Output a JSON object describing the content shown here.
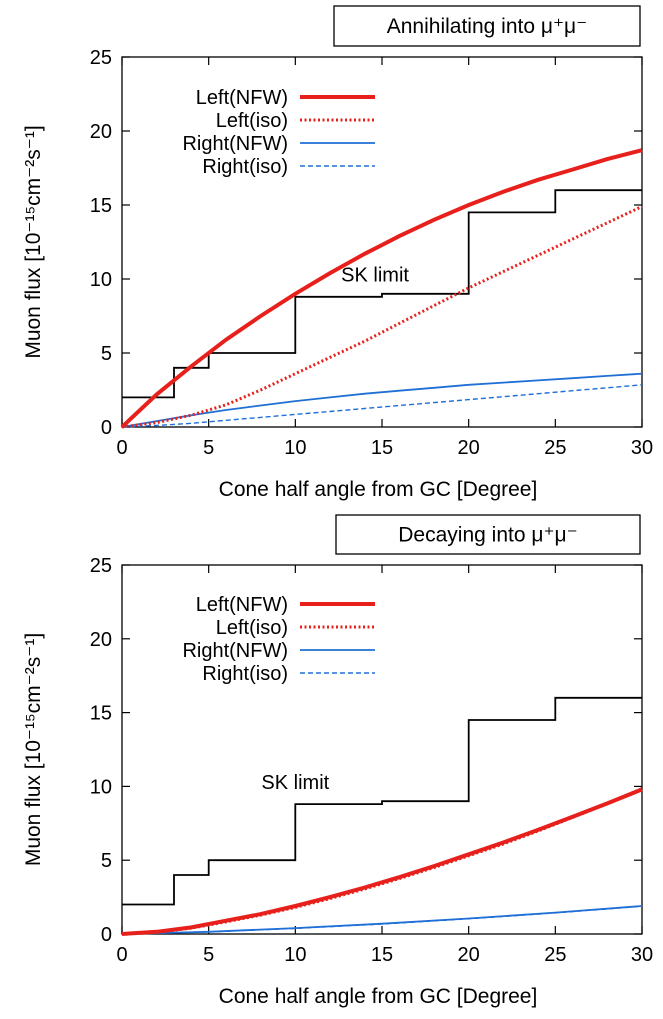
{
  "chart_data": [
    {
      "type": "line",
      "title": "Annihilating into μ⁺μ⁻",
      "xlabel": "Cone half angle from GC [Degree]",
      "ylabel": "Muon flux [10⁻¹⁵cm⁻²s⁻¹]",
      "xlim": [
        0,
        30
      ],
      "ylim": [
        0,
        25
      ],
      "xticks": [
        0,
        5,
        10,
        15,
        20,
        25,
        30
      ],
      "yticks": [
        0,
        5,
        10,
        15,
        20,
        25
      ],
      "grid": false,
      "legend_position": "top-left",
      "series": [
        {
          "name": "Left(NFW)",
          "color": "#e8201c",
          "style": "thick-solid",
          "x": [
            0,
            2,
            4,
            6,
            8,
            10,
            12,
            14,
            16,
            18,
            20,
            22,
            24,
            26,
            28,
            30
          ],
          "y": [
            0,
            2.2,
            4.1,
            5.9,
            7.5,
            9.0,
            10.4,
            11.7,
            12.9,
            14.0,
            15.0,
            15.9,
            16.7,
            17.4,
            18.1,
            18.7
          ]
        },
        {
          "name": "Left(iso)",
          "color": "#e8201c",
          "style": "dotted",
          "x": [
            0,
            2,
            4,
            6,
            8,
            10,
            12,
            14,
            16,
            18,
            20,
            22,
            24,
            26,
            28,
            30
          ],
          "y": [
            0,
            0.3,
            0.8,
            1.5,
            2.5,
            3.6,
            4.7,
            5.8,
            7.0,
            8.2,
            9.4,
            10.5,
            11.6,
            12.7,
            13.8,
            14.9
          ]
        },
        {
          "name": "Right(NFW)",
          "color": "#1f6fd6",
          "style": "solid",
          "x": [
            0,
            2,
            4,
            6,
            8,
            10,
            12,
            14,
            16,
            18,
            20,
            22,
            24,
            26,
            28,
            30
          ],
          "y": [
            0,
            0.4,
            0.8,
            1.15,
            1.45,
            1.75,
            2.0,
            2.25,
            2.45,
            2.65,
            2.85,
            3.0,
            3.15,
            3.3,
            3.45,
            3.6
          ]
        },
        {
          "name": "Right(iso)",
          "color": "#1f6fd6",
          "style": "dashed",
          "x": [
            0,
            2,
            4,
            6,
            8,
            10,
            12,
            14,
            16,
            18,
            20,
            22,
            24,
            26,
            28,
            30
          ],
          "y": [
            0,
            0.1,
            0.25,
            0.45,
            0.65,
            0.85,
            1.05,
            1.25,
            1.45,
            1.65,
            1.85,
            2.05,
            2.25,
            2.45,
            2.65,
            2.85
          ]
        }
      ],
      "limit": {
        "label": "SK limit",
        "label_at": [
          14.6,
          10.3
        ],
        "color": "#000000",
        "steps": [
          [
            0,
            2
          ],
          [
            3,
            2
          ],
          [
            3,
            4
          ],
          [
            5,
            4
          ],
          [
            5,
            5
          ],
          [
            10,
            5
          ],
          [
            10,
            8.8
          ],
          [
            15,
            8.8
          ],
          [
            15,
            9
          ],
          [
            20,
            9
          ],
          [
            20,
            14.5
          ],
          [
            25,
            14.5
          ],
          [
            25,
            16
          ],
          [
            30,
            16
          ]
        ]
      }
    },
    {
      "type": "line",
      "title": "Decaying into μ⁺μ⁻",
      "xlabel": "Cone half angle from GC [Degree]",
      "ylabel": "Muon flux [10⁻¹⁵cm⁻²s⁻¹]",
      "xlim": [
        0,
        30
      ],
      "ylim": [
        0,
        25
      ],
      "xticks": [
        0,
        5,
        10,
        15,
        20,
        25,
        30
      ],
      "yticks": [
        0,
        5,
        10,
        15,
        20,
        25
      ],
      "grid": false,
      "legend_position": "top-left",
      "series": [
        {
          "name": "Left(NFW)",
          "color": "#e8201c",
          "style": "thick-solid",
          "x": [
            0,
            2,
            4,
            6,
            8,
            10,
            12,
            14,
            16,
            18,
            20,
            22,
            24,
            26,
            28,
            30
          ],
          "y": [
            0,
            0.15,
            0.45,
            0.9,
            1.35,
            1.9,
            2.5,
            3.15,
            3.85,
            4.6,
            5.4,
            6.2,
            7.05,
            7.95,
            8.85,
            9.8
          ]
        },
        {
          "name": "Left(iso)",
          "color": "#e8201c",
          "style": "dotted",
          "x": [
            0,
            2,
            4,
            6,
            8,
            10,
            12,
            14,
            16,
            18,
            20,
            22,
            24,
            26,
            28,
            30
          ],
          "y": [
            0,
            0.12,
            0.4,
            0.82,
            1.28,
            1.8,
            2.4,
            3.05,
            3.75,
            4.5,
            5.3,
            6.1,
            6.98,
            7.9,
            8.85,
            9.85
          ]
        },
        {
          "name": "Right(NFW)",
          "color": "#1f6fd6",
          "style": "solid",
          "x": [
            0,
            5,
            10,
            15,
            20,
            25,
            30
          ],
          "y": [
            0,
            0.15,
            0.4,
            0.7,
            1.05,
            1.45,
            1.9
          ]
        },
        {
          "name": "Right(iso)",
          "color": "#1f6fd6",
          "style": "dashed",
          "x": [
            0,
            5,
            10,
            15,
            20,
            25,
            30
          ],
          "y": [
            0,
            0.14,
            0.38,
            0.68,
            1.03,
            1.43,
            1.88
          ]
        }
      ],
      "limit": {
        "label": "SK limit",
        "label_at": [
          10,
          10.3
        ],
        "color": "#000000",
        "steps": [
          [
            0,
            2
          ],
          [
            3,
            2
          ],
          [
            3,
            4
          ],
          [
            5,
            4
          ],
          [
            5,
            5
          ],
          [
            10,
            5
          ],
          [
            10,
            8.8
          ],
          [
            15,
            8.8
          ],
          [
            15,
            9
          ],
          [
            20,
            9
          ],
          [
            20,
            14.5
          ],
          [
            25,
            14.5
          ],
          [
            25,
            16
          ],
          [
            30,
            16
          ]
        ]
      }
    }
  ]
}
